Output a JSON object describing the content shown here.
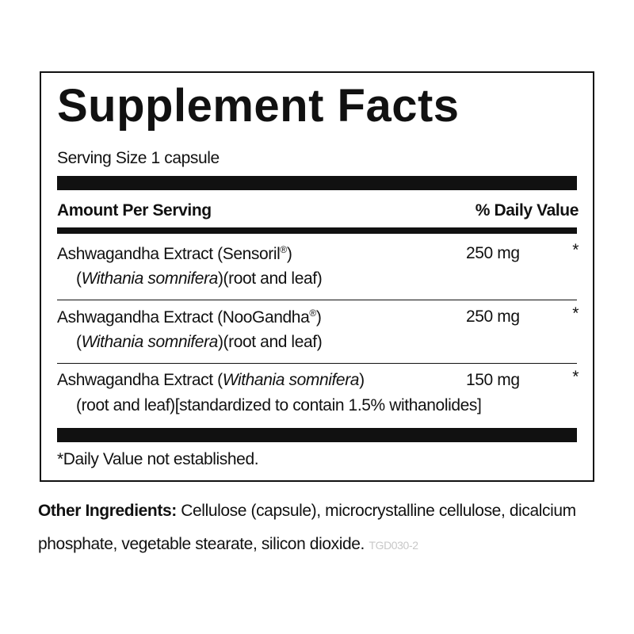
{
  "label": {
    "title": "Supplement Facts",
    "serving_size": "Serving Size 1 capsule",
    "header": {
      "amount": "Amount Per Serving",
      "daily_value": "% Daily Value"
    },
    "rows": [
      {
        "line1": [
          "Ashwagandha Extract (Sensoril",
          "®",
          ")"
        ],
        "line2": [
          "(",
          "Withania somnifera",
          ")(root and leaf)"
        ],
        "amount": "250 mg",
        "daily_value": "*"
      },
      {
        "line1": [
          "Ashwagandha Extract (NooGandha",
          "®",
          ")"
        ],
        "line2": [
          "(",
          "Withania somnifera",
          ")(root and leaf)"
        ],
        "amount": "250 mg",
        "daily_value": "*"
      },
      {
        "line1": [
          "Ashwagandha Extract (",
          "Withania somnifera",
          ")"
        ],
        "line2": [
          "(root and leaf)[standardized to contain 1.5% withanolides]"
        ],
        "amount": "150 mg",
        "daily_value": "*"
      }
    ],
    "footnote": "*Daily Value not established."
  },
  "other_ingredients": {
    "label": "Other Ingredients:",
    "text": "Cellulose (capsule), microcrystalline cellulose, dicalcium phosphate, vegetable stearate, silicon dioxide.",
    "code": "TGD030-2"
  }
}
